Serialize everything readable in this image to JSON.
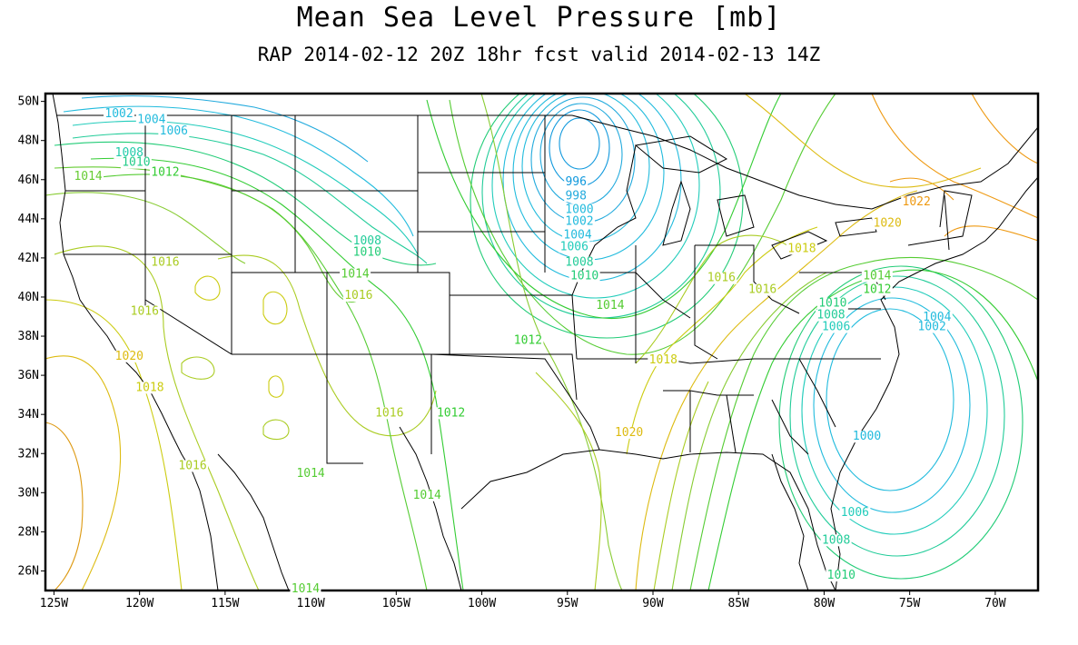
{
  "title": "Mean Sea Level Pressure [mb]",
  "subtitle": "RAP 2014-02-12 20Z 18hr fcst valid 2014-02-13 14Z",
  "axes": {
    "lon_labels": [
      "125W",
      "120W",
      "115W",
      "110W",
      "105W",
      "100W",
      "95W",
      "90W",
      "85W",
      "80W",
      "75W",
      "70W"
    ],
    "lat_labels": [
      "50N",
      "48N",
      "46N",
      "44N",
      "42N",
      "40N",
      "38N",
      "36N",
      "34N",
      "32N",
      "30N",
      "28N",
      "26N"
    ]
  },
  "contour_labels": [
    {
      "text": "1002",
      "lon": -121.2,
      "lat": 49.2,
      "color": "#22bbdd"
    },
    {
      "text": "1004",
      "lon": -119.3,
      "lat": 48.9,
      "color": "#22bbdd"
    },
    {
      "text": "1006",
      "lon": -118.0,
      "lat": 48.3,
      "color": "#22bbdd"
    },
    {
      "text": "1008",
      "lon": -120.6,
      "lat": 47.2,
      "color": "#22ccaa"
    },
    {
      "text": "1010",
      "lon": -120.2,
      "lat": 46.7,
      "color": "#22cc88"
    },
    {
      "text": "1012",
      "lon": -118.5,
      "lat": 46.2,
      "color": "#33cc33"
    },
    {
      "text": "1014",
      "lon": -123.0,
      "lat": 46.0,
      "color": "#66cc33"
    },
    {
      "text": "996",
      "lon": -94.5,
      "lat": 45.7,
      "color": "#1199dd"
    },
    {
      "text": "998",
      "lon": -94.5,
      "lat": 45.0,
      "color": "#22aadd"
    },
    {
      "text": "1000",
      "lon": -94.3,
      "lat": 44.3,
      "color": "#22bbdd"
    },
    {
      "text": "1002",
      "lon": -94.3,
      "lat": 43.7,
      "color": "#22bbdd"
    },
    {
      "text": "1004",
      "lon": -94.4,
      "lat": 43.0,
      "color": "#22bbdd"
    },
    {
      "text": "1006",
      "lon": -94.6,
      "lat": 42.4,
      "color": "#22ccbb"
    },
    {
      "text": "1008",
      "lon": -94.3,
      "lat": 41.6,
      "color": "#22cc99"
    },
    {
      "text": "1010",
      "lon": -94.0,
      "lat": 40.9,
      "color": "#22cc77"
    },
    {
      "text": "1008",
      "lon": -106.7,
      "lat": 42.7,
      "color": "#22cc99"
    },
    {
      "text": "1010",
      "lon": -106.7,
      "lat": 42.1,
      "color": "#22cc77"
    },
    {
      "text": "1014",
      "lon": -107.4,
      "lat": 41.0,
      "color": "#55cc33"
    },
    {
      "text": "1016",
      "lon": -107.2,
      "lat": 39.9,
      "color": "#aacc22"
    },
    {
      "text": "1016",
      "lon": -118.5,
      "lat": 41.6,
      "color": "#aacc22"
    },
    {
      "text": "1016",
      "lon": -119.7,
      "lat": 39.1,
      "color": "#aacc22"
    },
    {
      "text": "1020",
      "lon": -120.6,
      "lat": 36.8,
      "color": "#ddbb11"
    },
    {
      "text": "1018",
      "lon": -119.4,
      "lat": 35.2,
      "color": "#cccc11"
    },
    {
      "text": "1016",
      "lon": -105.4,
      "lat": 33.9,
      "color": "#aacc22"
    },
    {
      "text": "1012",
      "lon": -101.8,
      "lat": 33.9,
      "color": "#33cc33"
    },
    {
      "text": "1012",
      "lon": -97.3,
      "lat": 37.6,
      "color": "#33cc33"
    },
    {
      "text": "1014",
      "lon": -92.5,
      "lat": 39.4,
      "color": "#55cc33"
    },
    {
      "text": "1018",
      "lon": -89.4,
      "lat": 36.6,
      "color": "#cccc11"
    },
    {
      "text": "1020",
      "lon": -91.4,
      "lat": 32.9,
      "color": "#ddbb11"
    },
    {
      "text": "1016",
      "lon": -116.9,
      "lat": 31.2,
      "color": "#aacc22"
    },
    {
      "text": "1014",
      "lon": -110.0,
      "lat": 30.8,
      "color": "#55cc33"
    },
    {
      "text": "1014",
      "lon": -103.2,
      "lat": 29.7,
      "color": "#55cc33"
    },
    {
      "text": "1014",
      "lon": -110.3,
      "lat": 24.9,
      "color": "#55cc33"
    },
    {
      "text": "1016",
      "lon": -86.0,
      "lat": 40.8,
      "color": "#aacc22"
    },
    {
      "text": "1016",
      "lon": -83.6,
      "lat": 40.2,
      "color": "#aacc22"
    },
    {
      "text": "1018",
      "lon": -81.3,
      "lat": 42.3,
      "color": "#cccc11"
    },
    {
      "text": "1020",
      "lon": -76.3,
      "lat": 43.6,
      "color": "#ddbb11"
    },
    {
      "text": "1022",
      "lon": -74.6,
      "lat": 44.7,
      "color": "#ee9911"
    },
    {
      "text": "1014",
      "lon": -76.9,
      "lat": 40.9,
      "color": "#55cc33"
    },
    {
      "text": "1012",
      "lon": -76.9,
      "lat": 40.2,
      "color": "#33cc33"
    },
    {
      "text": "1010",
      "lon": -79.5,
      "lat": 39.5,
      "color": "#22cc77"
    },
    {
      "text": "1008",
      "lon": -79.6,
      "lat": 38.9,
      "color": "#22cc99"
    },
    {
      "text": "1006",
      "lon": -79.3,
      "lat": 38.3,
      "color": "#22ccbb"
    },
    {
      "text": "1004",
      "lon": -73.4,
      "lat": 38.8,
      "color": "#22bbdd"
    },
    {
      "text": "1002",
      "lon": -73.7,
      "lat": 38.3,
      "color": "#22bbdd"
    },
    {
      "text": "1000",
      "lon": -77.5,
      "lat": 32.7,
      "color": "#22bbdd"
    },
    {
      "text": "1006",
      "lon": -78.2,
      "lat": 28.8,
      "color": "#22ccbb"
    },
    {
      "text": "1008",
      "lon": -79.3,
      "lat": 27.4,
      "color": "#22cc99"
    },
    {
      "text": "1010",
      "lon": -79.0,
      "lat": 25.6,
      "color": "#22cc77"
    }
  ],
  "features": {
    "low_centers": [
      {
        "lon": -94.6,
        "lat": 47.6
      },
      {
        "lon": -75.4,
        "lat": 35.5
      }
    ]
  }
}
